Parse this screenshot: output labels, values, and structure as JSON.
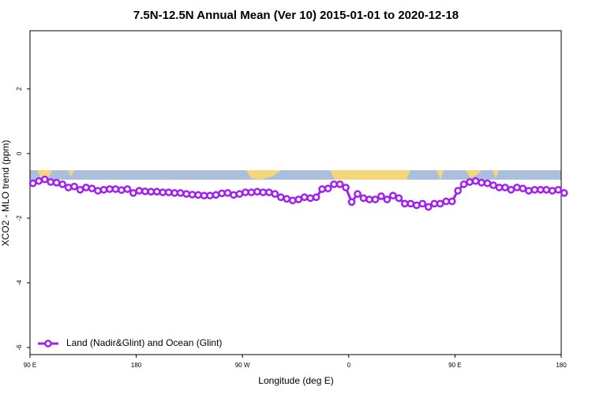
{
  "chart_data": {
    "type": "line",
    "title": "7.5N-12.5N Annual Mean (Ver 10)   2015-01-01 to 2020-12-18",
    "x_label": "Longitude (deg E)",
    "y_label": "XCO2 - MLO trend (ppm)",
    "xlim": [
      90,
      540
    ],
    "ylim": [
      -6.22,
      3.8
    ],
    "xticks": [
      {
        "value": 90,
        "label": "90 E"
      },
      180,
      {
        "value": 270,
        "label": "90 W"
      },
      {
        "value": 360,
        "label": "0"
      },
      {
        "value": 450,
        "label": "90 E"
      },
      180.0001
    ],
    "yticks": [
      -6,
      -4,
      -2,
      0,
      2
    ],
    "x": [
      92.5,
      97.5,
      102.5,
      107.5,
      112.5,
      117.5,
      122.5,
      127.5,
      132.5,
      137.5,
      142.5,
      147.5,
      152.5,
      157.5,
      162.5,
      167.5,
      172.5,
      177.5,
      182.5,
      187.5,
      192.5,
      197.5,
      202.5,
      207.5,
      212.5,
      217.5,
      222.5,
      227.5,
      232.5,
      237.5,
      242.5,
      247.5,
      252.5,
      257.5,
      262.5,
      267.5,
      272.5,
      277.5,
      282.5,
      287.5,
      292.5,
      297.5,
      302.5,
      307.5,
      312.5,
      317.5,
      322.5,
      327.5,
      332.5,
      337.5,
      342.5,
      347.5,
      352.5,
      357.5,
      362.5,
      367.5,
      372.5,
      377.5,
      382.5,
      387.5,
      392.5,
      397.5,
      402.5,
      407.5,
      412.5,
      417.5,
      422.5,
      427.5,
      432.5,
      437.5,
      442.5,
      447.5,
      452.5,
      457.5,
      462.5,
      467.5,
      472.5,
      477.5,
      482.5,
      487.5,
      492.5,
      497.5,
      502.5,
      507.5,
      512.5,
      517.5,
      522.5,
      527.5,
      532.5,
      537.5,
      542.5
    ],
    "series": [
      {
        "name": "Land (Nadir&Glint) and Ocean (Glint)",
        "color": "#a020f0",
        "values": [
          -0.92,
          -0.85,
          -0.8,
          -0.88,
          -0.9,
          -0.95,
          -1.05,
          -1.02,
          -1.12,
          -1.05,
          -1.08,
          -1.15,
          -1.12,
          -1.1,
          -1.1,
          -1.13,
          -1.1,
          -1.22,
          -1.15,
          -1.17,
          -1.18,
          -1.18,
          -1.2,
          -1.2,
          -1.22,
          -1.22,
          -1.25,
          -1.27,
          -1.28,
          -1.3,
          -1.3,
          -1.28,
          -1.23,
          -1.22,
          -1.28,
          -1.25,
          -1.2,
          -1.2,
          -1.18,
          -1.2,
          -1.2,
          -1.25,
          -1.35,
          -1.4,
          -1.45,
          -1.42,
          -1.35,
          -1.38,
          -1.35,
          -1.1,
          -1.08,
          -0.95,
          -0.95,
          -1.05,
          -1.5,
          -1.25,
          -1.38,
          -1.42,
          -1.42,
          -1.32,
          -1.42,
          -1.3,
          -1.38,
          -1.55,
          -1.55,
          -1.6,
          -1.55,
          -1.65,
          -1.55,
          -1.55,
          -1.48,
          -1.48,
          -1.15,
          -0.95,
          -0.88,
          -0.85,
          -0.9,
          -0.92,
          -0.98,
          -1.05,
          -1.05,
          -1.12,
          -1.05,
          -1.08,
          -1.15,
          -1.12,
          -1.12,
          -1.12,
          -1.15,
          -1.12,
          -1.22
        ]
      }
    ],
    "legend": "bottom-left"
  }
}
